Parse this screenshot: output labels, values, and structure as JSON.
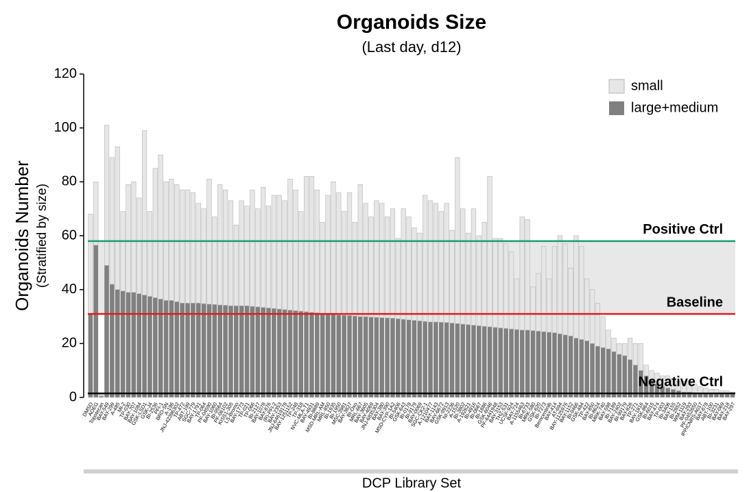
{
  "chart_data": {
    "type": "stacked-bar",
    "title": "Organoids Size",
    "subtitle": "(Last day, d12)",
    "y_label": "Organoids Number",
    "y_sublabel": "(Stratified by size)",
    "x_label": "DCP Library Set",
    "ylim": [
      0,
      120
    ],
    "yticks": [
      0,
      20,
      40,
      60,
      80,
      100,
      120
    ],
    "legend": "top-right",
    "categories": [
      "DMSO",
      "AOEG",
      "Topotecan",
      "BAY-549",
      "BAY-299",
      "A-485",
      "MI-2",
      "TP-030",
      "BAY-707",
      "BAY-1084",
      "GSK-LSD1",
      "GSK-J4",
      "BI-2536",
      "PFI-1",
      "BRD-SN",
      "A-196",
      "JNJ-42396302",
      "TP-472",
      "ABT-199",
      "SGC-779",
      "BAY-1791",
      "TP-064",
      "PF-04590",
      "BAY-1060",
      "BI-9564",
      "PF-06102",
      "KISS1-305",
      "LS-Bromo",
      "BAY-1773",
      "TP-021",
      "TP-066",
      "BI-2127",
      "BAY-1078",
      "BAY-876",
      "(R)-PFI-2",
      "BAY-2353",
      "JNJ-64619178",
      "BAY-1251152",
      "TP-248",
      "TP-318",
      "NVC-MLA-T1",
      "BAY-4931",
      "BI-8889",
      "MSD-MRL-AM",
      "MRL-850",
      "BI-1935",
      "BI-1950",
      "MSC-3981",
      "BAY-3827",
      "BI-Oxo",
      "MRL-667",
      "BAY-3605",
      "BAY-4069",
      "JNJ-6835304",
      "BAY-380",
      "BAY-390",
      "MSD-CYP-1A2",
      "BI-5406",
      "GSK-643",
      "BI-0178",
      "BI-9179",
      "BAY-0069",
      "SGC-CK2-1",
      "A-1210477",
      "BAY-1143",
      "BAY-6672",
      "GSK-9913",
      "NI-2236",
      "A-1520",
      "BI-3802",
      "A-192621",
      "BI-4916",
      "BI-0667",
      "BI-1886",
      "GSK-6046",
      "PF-6441948",
      "BAY-3153",
      "THZ-531",
      "UCSF-924",
      "BAY-724",
      "A-1155463",
      "BI-6733",
      "MRK-580",
      "GSK-620",
      "BI-7273",
      "Bemcentinib",
      "BAY-414",
      "AT-694",
      "BAY-1125976",
      "BAY-1152",
      "BI-9466",
      "GSK-484",
      "TP-422",
      "BAY-850",
      "BI-8624",
      "MRK-740",
      "BAY-598",
      "BI-7189",
      "BAY-2402",
      "BI-99179",
      "BAY-826",
      "TP-271",
      "BAY-1816",
      "GSK-864",
      "BI-6015",
      "BAY-474",
      "TP-003",
      "BI-3406",
      "BAY-155",
      "BI-2852",
      "WM-1119",
      "BAY-293",
      "PF-0452650",
      "IPP/CNRS-A017",
      "BAY-678",
      "ABT-100",
      "BI-3231",
      "BAY-069",
      "BAY-218",
      "BAY-297"
    ],
    "series": [
      {
        "name": "small",
        "color": "#e6e6e6",
        "values": [
          37,
          23.5,
          0.5,
          52,
          47,
          53,
          29.5,
          40,
          41,
          35.5,
          61,
          31.5,
          48,
          53.5,
          44,
          45,
          43.5,
          42,
          42,
          41,
          37,
          35.2,
          46.4,
          32.5,
          44.7,
          42.8,
          39,
          30,
          39,
          37,
          43.2,
          36.4,
          44.6,
          37.8,
          42,
          42.2,
          40.4,
          48.6,
          44.8,
          37,
          50.2,
          50.4,
          45.6,
          33.8,
          44,
          49.2,
          45.4,
          38.5,
          45.6,
          34.8,
          49,
          42,
          37.2,
          43.3,
          42.4,
          37.5,
          40.6,
          29.8,
          41,
          38.2,
          34.4,
          32.6,
          46.8,
          45,
          44,
          41.1,
          44.2,
          34.4,
          61.6,
          42.8,
          34,
          43.2,
          33.4,
          38.6,
          55.8,
          33,
          33.2,
          31.4,
          28.6,
          18.8,
          42,
          41,
          16.2,
          21.4,
          31.6,
          19.8,
          32,
          36.4,
          33.8,
          25.2,
          38,
          34.5,
          23,
          20,
          16,
          11.5,
          7,
          5,
          4,
          4.5,
          8,
          8,
          10,
          4,
          3.5,
          4,
          4,
          4.5,
          4,
          3.5,
          4,
          4,
          3.2,
          2.4,
          2,
          1.5,
          1.6,
          1.2,
          1.3,
          0.8
        ]
      },
      {
        "name": "large+medium",
        "color": "#808080",
        "values": [
          31,
          56.5,
          0.5,
          49,
          42,
          40,
          39.5,
          39,
          39,
          38.5,
          38,
          37.5,
          37,
          36.5,
          36,
          36,
          35.5,
          35,
          35,
          35,
          35,
          34.8,
          34.6,
          34.5,
          34.3,
          34.2,
          34,
          34,
          34,
          34,
          33.8,
          33.6,
          33.4,
          33.2,
          33,
          32.8,
          32.6,
          32.4,
          32.2,
          32,
          31.8,
          31.6,
          31.4,
          31.2,
          31,
          30.8,
          30.6,
          30.5,
          30.4,
          30.2,
          30,
          30,
          29.8,
          29.7,
          29.6,
          29.5,
          29.4,
          29.2,
          29,
          28.8,
          28.6,
          28.4,
          28.2,
          28,
          28,
          27.9,
          27.8,
          27.6,
          27.4,
          27.2,
          27,
          26.8,
          26.6,
          26.4,
          26.2,
          26,
          25.8,
          25.6,
          25.4,
          25.2,
          25,
          25,
          24.8,
          24.6,
          24.4,
          24.2,
          24,
          23.6,
          23.2,
          22.8,
          22,
          21.5,
          21,
          20,
          19,
          18.5,
          18,
          17,
          16,
          15.5,
          14,
          12,
          10,
          8,
          6.5,
          5,
          4,
          3.5,
          3,
          2.5,
          2,
          2,
          1.8,
          1.6,
          1.5,
          1.5,
          1.4,
          1.3,
          1.2,
          1.2
        ]
      }
    ],
    "reference_lines": [
      {
        "label": "Positive Ctrl",
        "value": 58,
        "color": "#1a9c6e"
      },
      {
        "label": "Baseline",
        "value": 31,
        "color": "#e31a1c"
      },
      {
        "label": "Negative Ctrl",
        "value": 1.5,
        "color": "#000000"
      }
    ]
  }
}
